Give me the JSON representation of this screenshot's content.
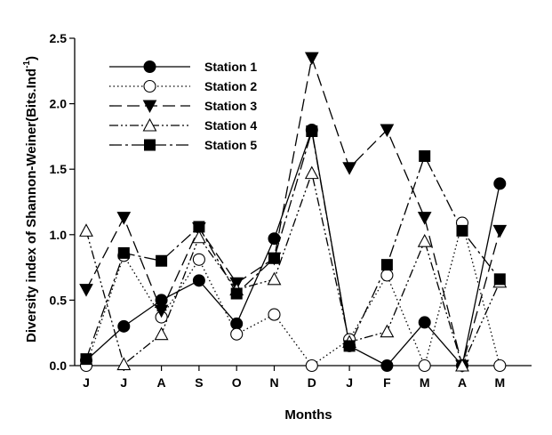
{
  "chart_data": {
    "type": "line",
    "xlabel": "Months",
    "ylabel": "Diversity index of Shannon-Weiner(Bits.Ind",
    "ylabel_sup": "-1",
    "ylabel_close": ")",
    "categories": [
      "J",
      "J",
      "A",
      "S",
      "O",
      "N",
      "D",
      "J",
      "F",
      "M",
      "A",
      "M"
    ],
    "ylim": [
      0,
      2.5
    ],
    "yticks": [
      "0.0",
      "0.5",
      "1.0",
      "1.5",
      "2.0",
      "2.5"
    ],
    "grid": false,
    "legend_position": "top-left",
    "series": [
      {
        "name": "Station 1",
        "marker": "circle-filled",
        "dash": "solid",
        "values": [
          0.04,
          0.3,
          0.5,
          0.65,
          0.32,
          0.97,
          1.8,
          0.15,
          0.0,
          0.33,
          0.0,
          1.39
        ]
      },
      {
        "name": "Station 2",
        "marker": "circle-open",
        "dash": "dotted",
        "values": [
          0.0,
          0.84,
          0.37,
          0.81,
          0.24,
          0.39,
          0.0,
          0.2,
          0.69,
          0.0,
          1.09,
          0.0
        ]
      },
      {
        "name": "Station 3",
        "marker": "triangle-down-filled",
        "dash": "long-dash",
        "values": [
          0.58,
          1.13,
          0.42,
          1.05,
          0.63,
          0.82,
          2.35,
          1.51,
          1.8,
          1.13,
          0.0,
          1.03
        ]
      },
      {
        "name": "Station 4",
        "marker": "triangle-up-open",
        "dash": "dash-dot-dot",
        "values": [
          1.03,
          0.01,
          0.24,
          0.98,
          0.58,
          0.66,
          1.47,
          0.18,
          0.26,
          0.95,
          0.0,
          0.64
        ]
      },
      {
        "name": "Station 5",
        "marker": "square-filled",
        "dash": "dash-dot",
        "values": [
          0.05,
          0.86,
          0.8,
          1.06,
          0.55,
          0.82,
          1.79,
          0.15,
          0.77,
          1.6,
          1.03,
          0.66
        ]
      }
    ]
  }
}
